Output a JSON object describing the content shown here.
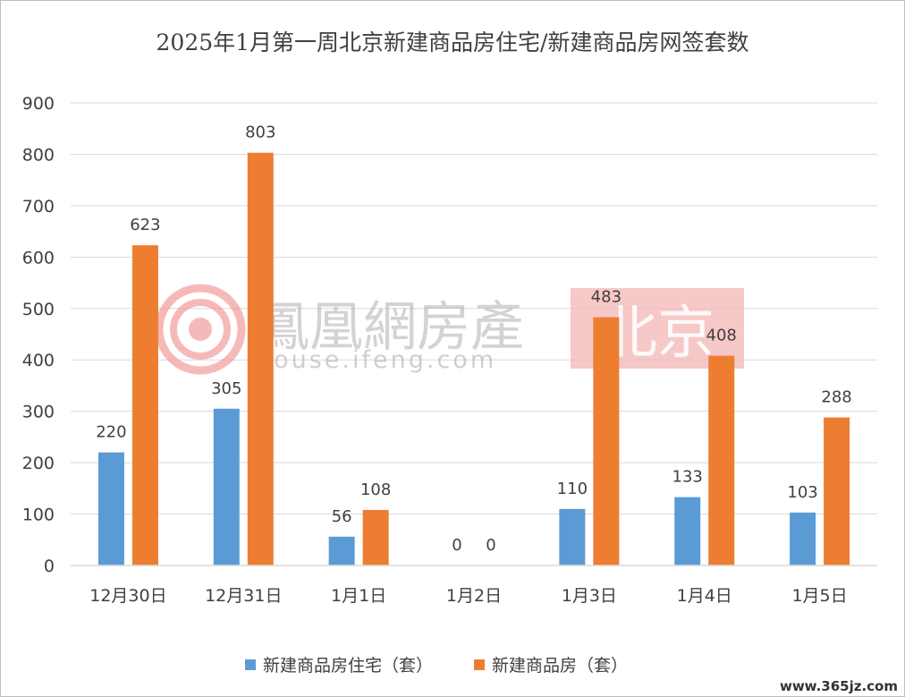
{
  "chart_data": {
    "type": "bar",
    "title": "2025年1月第一周北京新建商品房住宅/新建商品房网签套数",
    "categories": [
      "12月30日",
      "12月31日",
      "1月1日",
      "1月2日",
      "1月3日",
      "1月4日",
      "1月5日"
    ],
    "series": [
      {
        "name": "新建商品房住宅（套）",
        "color": "#5b9bd5",
        "values": [
          220,
          305,
          56,
          0,
          110,
          133,
          103
        ]
      },
      {
        "name": "新建商品房（套）",
        "color": "#ed7d31",
        "values": [
          623,
          803,
          108,
          0,
          483,
          408,
          288
        ]
      }
    ],
    "ylim": [
      0,
      900
    ],
    "yticks": [
      0,
      100,
      200,
      300,
      400,
      500,
      600,
      700,
      800,
      900
    ],
    "grid": true,
    "legend_position": "bottom"
  },
  "watermark": {
    "brand": "鳳凰網房產",
    "url": "house.ifeng.com",
    "city": "北京",
    "city_bg_color": "#f4b6b6",
    "logo_color": "#f08a8a",
    "logo_icon": "phoenix-logo-icon"
  },
  "corner_watermark": "www.365jz.com"
}
